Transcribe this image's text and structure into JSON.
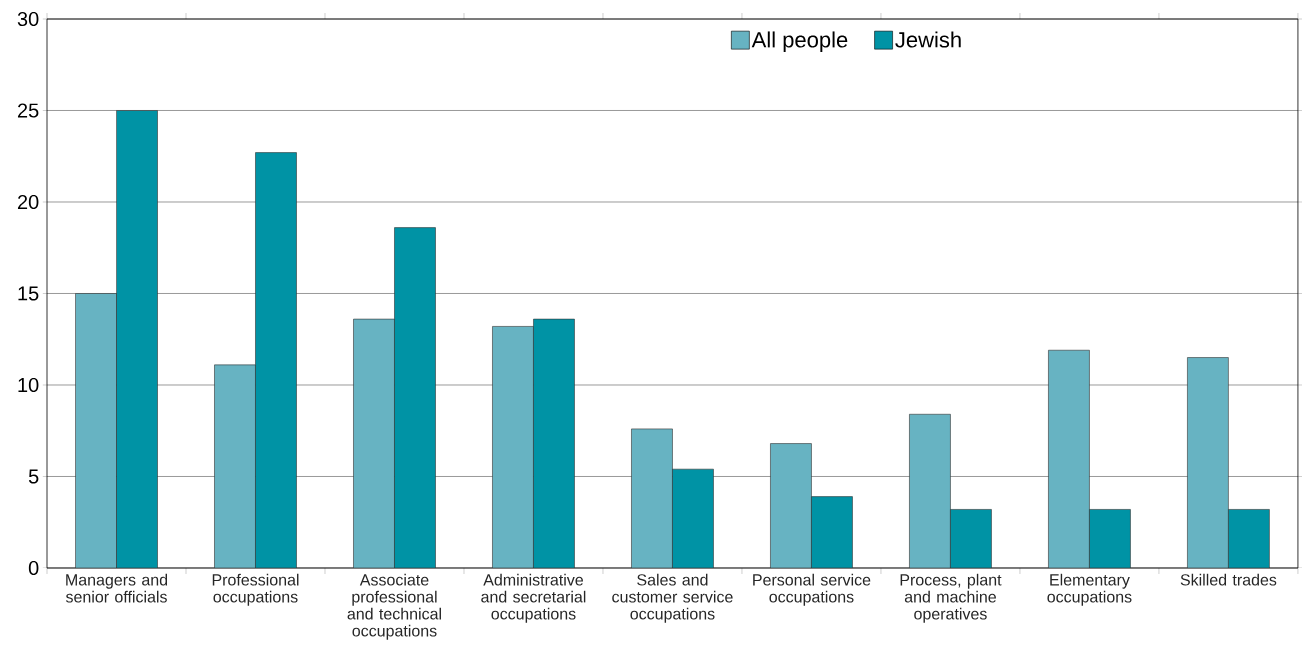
{
  "chart_data": {
    "type": "bar",
    "categories": [
      "Managers and senior officials",
      "Professional occupations",
      "Associate professional and technical occupations",
      "Administrative and secretarial occupations",
      "Sales and customer service occupations",
      "Personal service occupations",
      "Process, plant and machine operatives",
      "Elementary occupations",
      "Skilled trades"
    ],
    "series": [
      {
        "name": "All people",
        "color": "#67b3c2",
        "values": [
          15.0,
          11.1,
          13.6,
          13.2,
          7.6,
          6.8,
          8.4,
          11.9,
          11.5
        ]
      },
      {
        "name": "Jewish",
        "color": "#0093a5",
        "values": [
          25.0,
          22.7,
          18.6,
          13.6,
          5.4,
          3.9,
          3.2,
          3.2,
          3.2
        ]
      }
    ],
    "ylim": [
      0,
      30
    ],
    "yticks": [
      0,
      5,
      10,
      15,
      20,
      25,
      30
    ],
    "grid": "y",
    "legend": "top"
  }
}
